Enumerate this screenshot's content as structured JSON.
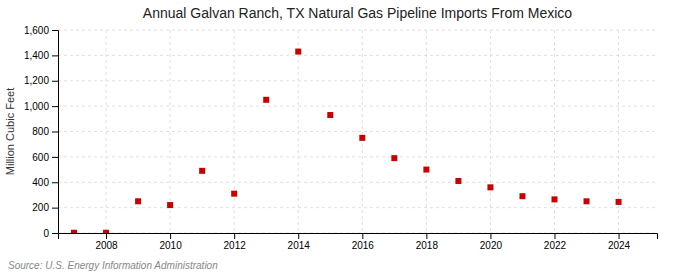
{
  "chart_data": {
    "type": "scatter",
    "title": "Annual Galvan Ranch, TX Natural Gas Pipeline Imports From Mexico",
    "y_label": "Million Cubic Feet",
    "source": "Source: U.S. Energy Information Administration",
    "x": [
      2007,
      2008,
      2009,
      2010,
      2011,
      2012,
      2013,
      2014,
      2015,
      2016,
      2017,
      2018,
      2019,
      2020,
      2021,
      2022,
      2023,
      2024
    ],
    "values": [
      2,
      2,
      250,
      220,
      490,
      310,
      1050,
      1430,
      930,
      750,
      590,
      500,
      410,
      360,
      290,
      265,
      250,
      245
    ],
    "color": "#cc0000",
    "marker": "square",
    "xlim": [
      2006.5,
      2025.2
    ],
    "xticks": [
      2008,
      2010,
      2012,
      2014,
      2016,
      2018,
      2020,
      2022,
      2024
    ],
    "ylim": [
      0,
      1600
    ],
    "yticks": [
      0,
      200,
      400,
      600,
      800,
      {
        "value": 1000,
        "label": "1,000"
      },
      {
        "value": 1200,
        "label": "1,200"
      },
      {
        "value": 1400,
        "label": "1,400"
      },
      {
        "value": 1600,
        "label": "1,600"
      }
    ],
    "grid": true
  }
}
